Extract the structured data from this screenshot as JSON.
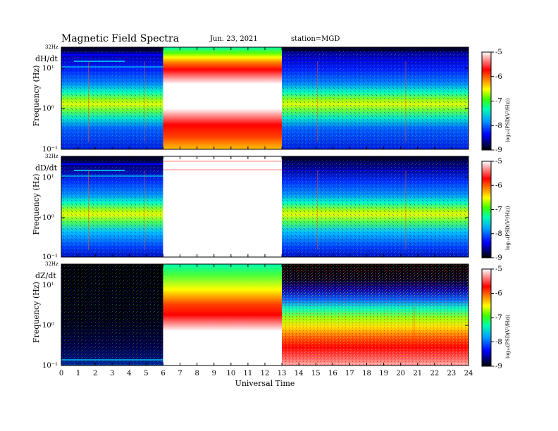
{
  "header": {
    "title": "Magnetic  Field  Spectra",
    "date": "Jun. 23, 2021",
    "station": "station=MGD"
  },
  "chart_data": {
    "type": "heatmap",
    "xlabel": "Universal Time",
    "xlim": [
      0,
      24
    ],
    "x_ticks": [
      "0",
      "1",
      "2",
      "3",
      "4",
      "5",
      "6",
      "7",
      "8",
      "9",
      "10",
      "11",
      "12",
      "13",
      "14",
      "15",
      "16",
      "17",
      "18",
      "19",
      "20",
      "21",
      "22",
      "23",
      "24"
    ],
    "ylabel": "Frequency  (Hz)",
    "y_scale": "log",
    "y_top_label": "32Hz",
    "y_ticks": [
      "10¹",
      "10⁰",
      "10⁻¹"
    ],
    "colorbar": {
      "label": "log₁₀(PSD(V²/Hz))",
      "ticks": [
        "-5",
        "-6",
        "-7",
        "-8",
        "-9"
      ],
      "range": [
        -9,
        -5
      ]
    },
    "data_gap_ut": [
      6,
      13
    ],
    "panels": [
      {
        "name": "dH/dt"
      },
      {
        "name": "dD/dt"
      },
      {
        "name": "dZ/dt"
      }
    ]
  }
}
